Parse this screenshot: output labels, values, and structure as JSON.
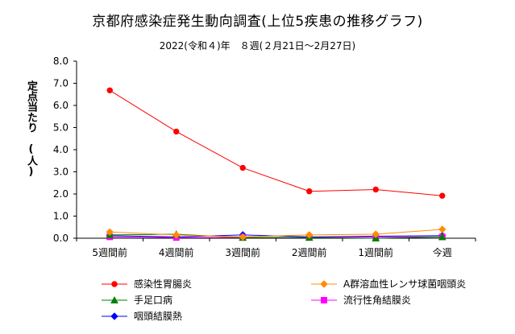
{
  "chart_data": {
    "type": "line",
    "title": "京都府感染症発生動向調査(上位5疾患の推移グラフ)",
    "subtitle": "2022(令和４)年　８週(２月21日～2月27日)",
    "ylabel": "定点当たり　(人)",
    "ylim": [
      0,
      8
    ],
    "yticks": [
      "0.0",
      "1.0",
      "2.0",
      "3.0",
      "4.0",
      "5.0",
      "6.0",
      "7.0",
      "8.0"
    ],
    "ytick_values": [
      0,
      1,
      2,
      3,
      4,
      5,
      6,
      7,
      8
    ],
    "categories": [
      "5週間前",
      "4週間前",
      "3週間前",
      "2週間前",
      "1週間前",
      "今週"
    ],
    "grid": false,
    "legend_position": "bottom",
    "series": [
      {
        "name": "感染性胃腸炎",
        "color": "#ff0000",
        "marker": "circle",
        "values": [
          6.68,
          4.82,
          3.18,
          2.12,
          2.2,
          1.92
        ]
      },
      {
        "name": "A群溶血性レンサ球菌咽頭炎",
        "color": "#ff8c00",
        "marker": "diamond",
        "values": [
          0.28,
          0.15,
          0.06,
          0.15,
          0.18,
          0.4
        ]
      },
      {
        "name": "手足口病",
        "color": "#008000",
        "marker": "triangle",
        "values": [
          0.15,
          0.18,
          0.03,
          0.03,
          0.0,
          0.06
        ]
      },
      {
        "name": "流行性角結膜炎",
        "color": "#ff00ff",
        "marker": "square",
        "values": [
          0.06,
          0.03,
          0.03,
          0.03,
          0.06,
          0.06
        ]
      },
      {
        "name": "咽頭結膜熱",
        "color": "#0000ff",
        "marker": "diamond",
        "values": [
          0.12,
          0.06,
          0.15,
          0.06,
          0.09,
          0.12
        ]
      }
    ]
  }
}
